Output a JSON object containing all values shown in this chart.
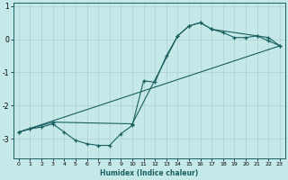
{
  "xlabel": "Humidex (Indice chaleur)",
  "ylabel": "",
  "background_color": "#c5e8e8",
  "grid_color": "#afd0d0",
  "line_color": "#1a6060",
  "xlim": [
    -0.5,
    23.5
  ],
  "ylim": [
    -3.6,
    1.1
  ],
  "yticks": [
    1,
    0,
    -1,
    -2,
    -3
  ],
  "xticks": [
    0,
    1,
    2,
    3,
    4,
    5,
    6,
    7,
    8,
    9,
    10,
    11,
    12,
    13,
    14,
    15,
    16,
    17,
    18,
    19,
    20,
    21,
    22,
    23
  ],
  "series1_x": [
    0,
    1,
    2,
    3,
    4,
    5,
    6,
    7,
    8,
    9,
    10,
    11,
    12,
    13,
    14,
    15,
    16,
    17,
    18,
    19,
    20,
    21,
    22,
    23
  ],
  "series1_y": [
    -2.8,
    -2.7,
    -2.65,
    -2.55,
    -2.8,
    -3.05,
    -3.15,
    -3.2,
    -3.2,
    -2.85,
    -2.6,
    -1.25,
    -1.3,
    -0.5,
    0.1,
    0.4,
    0.5,
    0.3,
    0.2,
    0.05,
    0.05,
    0.1,
    -0.05,
    -0.2
  ],
  "series2_x": [
    0,
    1,
    3,
    10,
    14,
    15,
    16,
    17,
    21,
    22,
    23
  ],
  "series2_y": [
    -2.8,
    -2.7,
    -2.5,
    -2.55,
    0.1,
    0.4,
    0.5,
    0.3,
    0.1,
    0.05,
    -0.2
  ],
  "series3_x": [
    0,
    23
  ],
  "series3_y": [
    -2.8,
    -0.2
  ]
}
